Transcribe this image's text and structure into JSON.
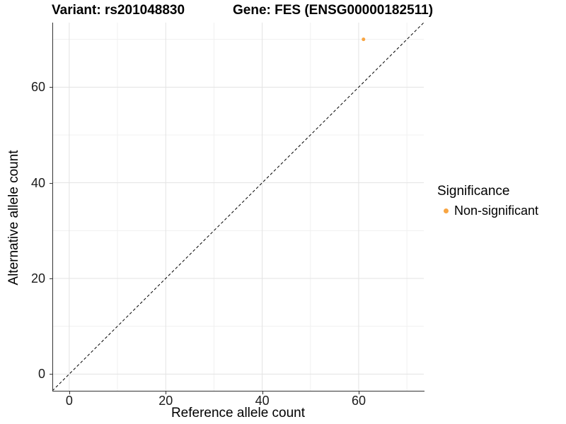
{
  "titles": {
    "variant": "Variant: rs201048830",
    "gene": "Gene: FES (ENSG00000182511)"
  },
  "legend": {
    "title": "Significance",
    "items": [
      {
        "label": "Non-significant",
        "color": "#F8A542"
      }
    ]
  },
  "colors": {
    "point_orange": "#F8A542",
    "grid_major": "#E3E3E3",
    "grid_minor": "#F0F0F0",
    "axis_line": "#333333",
    "dashed_line": "#000000",
    "background": "#FFFFFF"
  },
  "chart_data": {
    "type": "scatter",
    "title_left": "Variant: rs201048830",
    "title_right": "Gene: FES (ENSG00000182511)",
    "xlabel": "Reference allele count",
    "ylabel": "Alternative allele count",
    "xlim": [
      -3.5,
      73.5
    ],
    "ylim": [
      -3.5,
      73.5
    ],
    "x_major_ticks": [
      0,
      20,
      40,
      60
    ],
    "y_major_ticks": [
      0,
      20,
      40,
      60
    ],
    "x_minor_ticks": [
      10,
      30,
      50,
      70
    ],
    "y_minor_ticks": [
      10,
      30,
      50,
      70
    ],
    "grid": "major+minor",
    "legend_position": "right",
    "series": [
      {
        "name": "Non-significant",
        "color": "#F8A542",
        "points": [
          {
            "x": 61,
            "y": 70
          }
        ]
      }
    ],
    "reference_line": {
      "type": "identity y=x",
      "style": "dashed",
      "color": "#000000",
      "from": [
        -3.5,
        -3.5
      ],
      "to": [
        73.5,
        73.5
      ]
    }
  }
}
